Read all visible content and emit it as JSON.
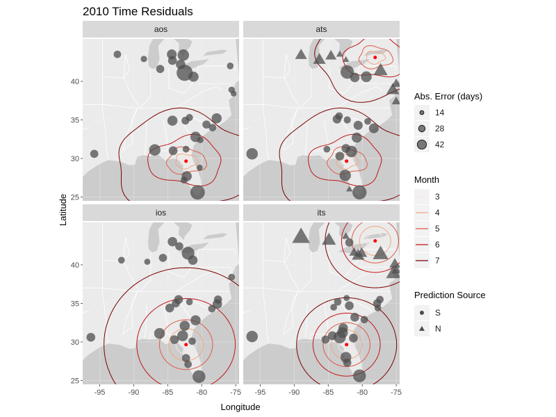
{
  "chart_data": {
    "type": "scatter",
    "title": "2010 Time Residuals",
    "xlabel": "Longitude",
    "ylabel": "Latitude",
    "xlim": [
      -97.5,
      -74.5
    ],
    "ylim": [
      24.5,
      45.5
    ],
    "x_ticks": [
      -95,
      -90,
      -85,
      -80,
      -75
    ],
    "x_tick_labels": [
      "-95",
      "-90",
      "-85",
      "-80",
      "-75"
    ],
    "y_ticks": [
      25,
      30,
      35,
      40
    ],
    "y_tick_labels": [
      "25",
      "30",
      "35",
      "40"
    ],
    "grid": true,
    "legend_placement": "right",
    "panels": [
      {
        "label": "aos",
        "center": [
          -82.3,
          29.65
        ],
        "contour_kind": "irregular",
        "contours": [
          {
            "month": 3,
            "level": 0.7
          },
          {
            "month": 4,
            "level": 1.3
          },
          {
            "month": 5,
            "level": 2.3
          },
          {
            "month": 6,
            "level": 4.3
          },
          {
            "month": 7,
            "level": 8.5
          }
        ],
        "points": [
          {
            "x": -84.4,
            "y": 43.5,
            "size": 21,
            "shape": "S"
          },
          {
            "x": -82.7,
            "y": 43.4,
            "size": 26,
            "shape": "S"
          },
          {
            "x": -83.1,
            "y": 42.2,
            "size": 20,
            "shape": "S"
          },
          {
            "x": -84.3,
            "y": 42.7,
            "size": 18,
            "shape": "S"
          },
          {
            "x": -86.1,
            "y": 41.6,
            "size": 16,
            "shape": "S"
          },
          {
            "x": -88.5,
            "y": 42.9,
            "size": 11,
            "shape": "S"
          },
          {
            "x": -92.4,
            "y": 43.5,
            "size": 14,
            "shape": "S"
          },
          {
            "x": -82.5,
            "y": 41.1,
            "size": 40,
            "shape": "S"
          },
          {
            "x": -81.2,
            "y": 40.6,
            "size": 22,
            "shape": "S"
          },
          {
            "x": -75.8,
            "y": 42.0,
            "size": 12,
            "shape": "S"
          },
          {
            "x": -75.3,
            "y": 38.4,
            "size": 9,
            "shape": "S"
          },
          {
            "x": -75.6,
            "y": 38.9,
            "size": 11,
            "shape": "S"
          },
          {
            "x": -82.4,
            "y": 34.9,
            "size": 15,
            "shape": "S"
          },
          {
            "x": -84.3,
            "y": 34.9,
            "size": 22,
            "shape": "S"
          },
          {
            "x": -81.8,
            "y": 35.3,
            "size": 13,
            "shape": "S"
          },
          {
            "x": -77.8,
            "y": 35.2,
            "size": 22,
            "shape": "S"
          },
          {
            "x": -79.3,
            "y": 34.4,
            "size": 16,
            "shape": "S"
          },
          {
            "x": -78.4,
            "y": 34.0,
            "size": 14,
            "shape": "S"
          },
          {
            "x": -80.9,
            "y": 32.8,
            "size": 23,
            "shape": "S"
          },
          {
            "x": -80.2,
            "y": 32.4,
            "size": 11,
            "shape": "S"
          },
          {
            "x": -82.3,
            "y": 31.2,
            "size": 12,
            "shape": "S"
          },
          {
            "x": -84.2,
            "y": 31.0,
            "size": 18,
            "shape": "S"
          },
          {
            "x": -86.9,
            "y": 31.1,
            "size": 26,
            "shape": "S"
          },
          {
            "x": -95.8,
            "y": 30.6,
            "size": 16,
            "shape": "S"
          },
          {
            "x": -82.2,
            "y": 27.7,
            "size": 22,
            "shape": "S"
          },
          {
            "x": -82.6,
            "y": 27.2,
            "size": 12,
            "shape": "S"
          },
          {
            "x": -80.6,
            "y": 25.6,
            "size": 35,
            "shape": "S"
          },
          {
            "x": -80.3,
            "y": 28.8,
            "size": 10,
            "shape": "S"
          }
        ]
      },
      {
        "label": "ats",
        "center": [
          -82.3,
          29.65
        ],
        "center2": [
          -78.1,
          43.1
        ],
        "contour_kind": "irregular",
        "contours": [
          {
            "month": 3,
            "level": 0.7
          },
          {
            "month": 4,
            "level": 1.3
          },
          {
            "month": 5,
            "level": 2.3
          },
          {
            "month": 6,
            "level": 4.3
          },
          {
            "month": 7,
            "level": 8.5
          }
        ],
        "points": [
          {
            "x": -89.0,
            "y": 43.4,
            "size": 24,
            "shape": "N"
          },
          {
            "x": -86.3,
            "y": 42.8,
            "size": 26,
            "shape": "N"
          },
          {
            "x": -84.6,
            "y": 43.3,
            "size": 22,
            "shape": "N"
          },
          {
            "x": -82.4,
            "y": 42.8,
            "size": 10,
            "shape": "N"
          },
          {
            "x": -83.3,
            "y": 43.5,
            "size": 11,
            "shape": "N"
          },
          {
            "x": -82.2,
            "y": 41.2,
            "size": 32,
            "shape": "S"
          },
          {
            "x": -81.1,
            "y": 40.5,
            "size": 20,
            "shape": "S"
          },
          {
            "x": -79.4,
            "y": 40.6,
            "size": 24,
            "shape": "S"
          },
          {
            "x": -77.3,
            "y": 41.4,
            "size": 30,
            "shape": "N"
          },
          {
            "x": -75.0,
            "y": 39.7,
            "size": 18,
            "shape": "N"
          },
          {
            "x": -75.5,
            "y": 38.9,
            "size": 27,
            "shape": "N"
          },
          {
            "x": -75.0,
            "y": 37.4,
            "size": 16,
            "shape": "N"
          },
          {
            "x": -83.4,
            "y": 35.5,
            "size": 14,
            "shape": "S"
          },
          {
            "x": -83.7,
            "y": 35.1,
            "size": 18,
            "shape": "S"
          },
          {
            "x": -82.2,
            "y": 35.0,
            "size": 13,
            "shape": "S"
          },
          {
            "x": -80.6,
            "y": 34.3,
            "size": 19,
            "shape": "S"
          },
          {
            "x": -79.2,
            "y": 34.8,
            "size": 12,
            "shape": "S"
          },
          {
            "x": -78.3,
            "y": 33.9,
            "size": 21,
            "shape": "S"
          },
          {
            "x": -80.8,
            "y": 32.7,
            "size": 22,
            "shape": "S"
          },
          {
            "x": -82.4,
            "y": 31.3,
            "size": 18,
            "shape": "S"
          },
          {
            "x": -81.6,
            "y": 30.9,
            "size": 26,
            "shape": "S"
          },
          {
            "x": -83.3,
            "y": 30.3,
            "size": 18,
            "shape": "S"
          },
          {
            "x": -85.2,
            "y": 31.2,
            "size": 12,
            "shape": "S"
          },
          {
            "x": -96.2,
            "y": 30.6,
            "size": 26,
            "shape": "S"
          },
          {
            "x": -82.5,
            "y": 27.8,
            "size": 26,
            "shape": "S"
          },
          {
            "x": -80.4,
            "y": 25.6,
            "size": 34,
            "shape": "S"
          },
          {
            "x": -81.9,
            "y": 26.0,
            "size": 9,
            "shape": "N"
          }
        ]
      },
      {
        "label": "ios",
        "center": [
          -82.3,
          29.65
        ],
        "contour_kind": "concentric",
        "contours": [
          {
            "month": 3,
            "level": 1.3
          },
          {
            "month": 4,
            "level": 2.2
          },
          {
            "month": 5,
            "level": 3.4
          },
          {
            "month": 6,
            "level": 6.3
          },
          {
            "month": 7,
            "level": 10.5
          }
        ],
        "points": [
          {
            "x": -84.3,
            "y": 43.0,
            "size": 20,
            "shape": "S"
          },
          {
            "x": -83.3,
            "y": 42.4,
            "size": 16,
            "shape": "S"
          },
          {
            "x": -82.0,
            "y": 41.5,
            "size": 30,
            "shape": "S"
          },
          {
            "x": -81.3,
            "y": 40.6,
            "size": 20,
            "shape": "S"
          },
          {
            "x": -85.7,
            "y": 40.9,
            "size": 16,
            "shape": "S"
          },
          {
            "x": -88.0,
            "y": 40.4,
            "size": 10,
            "shape": "S"
          },
          {
            "x": -91.8,
            "y": 40.6,
            "size": 12,
            "shape": "S"
          },
          {
            "x": -75.6,
            "y": 38.4,
            "size": 12,
            "shape": "S"
          },
          {
            "x": -83.4,
            "y": 35.5,
            "size": 18,
            "shape": "S"
          },
          {
            "x": -83.8,
            "y": 35.0,
            "size": 16,
            "shape": "S"
          },
          {
            "x": -84.7,
            "y": 34.4,
            "size": 18,
            "shape": "S"
          },
          {
            "x": -81.8,
            "y": 35.2,
            "size": 12,
            "shape": "S"
          },
          {
            "x": -77.6,
            "y": 35.5,
            "size": 16,
            "shape": "S"
          },
          {
            "x": -77.7,
            "y": 34.9,
            "size": 20,
            "shape": "S"
          },
          {
            "x": -78.5,
            "y": 34.3,
            "size": 14,
            "shape": "S"
          },
          {
            "x": -80.9,
            "y": 32.8,
            "size": 22,
            "shape": "S"
          },
          {
            "x": -82.5,
            "y": 32.1,
            "size": 22,
            "shape": "S"
          },
          {
            "x": -86.2,
            "y": 31.1,
            "size": 24,
            "shape": "S"
          },
          {
            "x": -82.8,
            "y": 30.8,
            "size": 24,
            "shape": "S"
          },
          {
            "x": -84.0,
            "y": 30.3,
            "size": 18,
            "shape": "S"
          },
          {
            "x": -81.4,
            "y": 30.1,
            "size": 14,
            "shape": "S"
          },
          {
            "x": -96.3,
            "y": 30.6,
            "size": 18,
            "shape": "S"
          },
          {
            "x": -82.3,
            "y": 27.9,
            "size": 16,
            "shape": "S"
          },
          {
            "x": -82.0,
            "y": 27.1,
            "size": 14,
            "shape": "S"
          },
          {
            "x": -80.4,
            "y": 25.5,
            "size": 30,
            "shape": "S"
          }
        ]
      },
      {
        "label": "its",
        "center": [
          -82.3,
          29.65
        ],
        "center2": [
          -78.1,
          43.1
        ],
        "contour_kind": "concentric",
        "contours": [
          {
            "month": 3,
            "level": 1.1
          },
          {
            "month": 4,
            "level": 2.0
          },
          {
            "month": 5,
            "level": 3.0
          },
          {
            "month": 6,
            "level": 4.3
          },
          {
            "month": 7,
            "level": 6.4
          }
        ],
        "points": [
          {
            "x": -89.0,
            "y": 43.6,
            "size": 40,
            "shape": "N"
          },
          {
            "x": -84.9,
            "y": 43.2,
            "size": 30,
            "shape": "N"
          },
          {
            "x": -82.4,
            "y": 43.7,
            "size": 12,
            "shape": "N"
          },
          {
            "x": -81.9,
            "y": 42.9,
            "size": 16,
            "shape": "S"
          },
          {
            "x": -81.2,
            "y": 41.6,
            "size": 18,
            "shape": "N"
          },
          {
            "x": -80.1,
            "y": 41.5,
            "size": 22,
            "shape": "N"
          },
          {
            "x": -80.6,
            "y": 41.2,
            "size": 26,
            "shape": "N"
          },
          {
            "x": -77.3,
            "y": 41.4,
            "size": 34,
            "shape": "N"
          },
          {
            "x": -75.2,
            "y": 40.1,
            "size": 22,
            "shape": "N"
          },
          {
            "x": -75.4,
            "y": 38.9,
            "size": 32,
            "shape": "N"
          },
          {
            "x": -75.0,
            "y": 39.3,
            "size": 18,
            "shape": "N"
          },
          {
            "x": -82.3,
            "y": 35.7,
            "size": 10,
            "shape": "S"
          },
          {
            "x": -83.6,
            "y": 35.2,
            "size": 14,
            "shape": "S"
          },
          {
            "x": -84.2,
            "y": 34.5,
            "size": 12,
            "shape": "S"
          },
          {
            "x": -81.9,
            "y": 34.7,
            "size": 18,
            "shape": "S"
          },
          {
            "x": -77.8,
            "y": 35.0,
            "size": 16,
            "shape": "S"
          },
          {
            "x": -77.4,
            "y": 35.5,
            "size": 14,
            "shape": "S"
          },
          {
            "x": -77.7,
            "y": 34.4,
            "size": 12,
            "shape": "S"
          },
          {
            "x": -79.7,
            "y": 32.9,
            "size": 14,
            "shape": "S"
          },
          {
            "x": -81.1,
            "y": 33.2,
            "size": 18,
            "shape": "S"
          },
          {
            "x": -82.8,
            "y": 31.8,
            "size": 20,
            "shape": "S"
          },
          {
            "x": -82.9,
            "y": 31.2,
            "size": 24,
            "shape": "S"
          },
          {
            "x": -83.3,
            "y": 30.6,
            "size": 28,
            "shape": "S"
          },
          {
            "x": -84.4,
            "y": 30.8,
            "size": 18,
            "shape": "S"
          },
          {
            "x": -85.4,
            "y": 30.3,
            "size": 16,
            "shape": "S"
          },
          {
            "x": -81.3,
            "y": 30.5,
            "size": 18,
            "shape": "S"
          },
          {
            "x": -82.4,
            "y": 28.0,
            "size": 24,
            "shape": "S"
          },
          {
            "x": -82.2,
            "y": 27.3,
            "size": 16,
            "shape": "S"
          },
          {
            "x": -96.2,
            "y": 30.7,
            "size": 26,
            "shape": "S"
          },
          {
            "x": -80.4,
            "y": 25.6,
            "size": 30,
            "shape": "S"
          }
        ]
      }
    ],
    "legends": {
      "size": {
        "title": "Abs. Error (days)",
        "items": [
          {
            "label": "14",
            "size": 14
          },
          {
            "label": "28",
            "size": 28
          },
          {
            "label": "42",
            "size": 42
          }
        ]
      },
      "month": {
        "title": "Month",
        "items": [
          {
            "label": "3",
            "month": 3
          },
          {
            "label": "4",
            "month": 4
          },
          {
            "label": "5",
            "month": 5
          },
          {
            "label": "6",
            "month": 6
          },
          {
            "label": "7",
            "month": 7
          }
        ]
      },
      "source": {
        "title": "Prediction Source",
        "items": [
          {
            "label": "S",
            "shape": "S"
          },
          {
            "label": "N",
            "shape": "N"
          }
        ]
      }
    }
  },
  "colors": {
    "panel_bg": "#ffffff",
    "land": "#ebebeb",
    "ocean": "#cccccc",
    "strip": "#d9d9d9",
    "grid": "#f2f2f2",
    "point": "#4d4d4d",
    "center_dot": "#ff0000",
    "month_3": "#f6e8e3",
    "month_4": "#f4a582",
    "month_5": "#e05a45",
    "month_6": "#c01515",
    "month_7": "#7a0000",
    "state_line": "#ffffff"
  }
}
